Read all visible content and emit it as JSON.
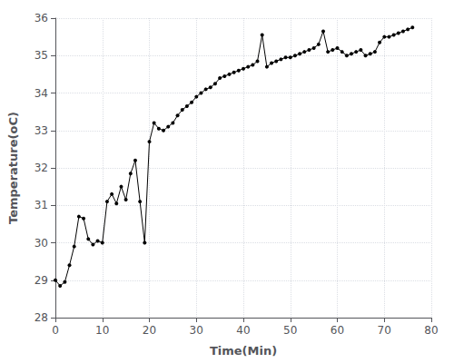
{
  "chart_data": {
    "type": "line",
    "xlabel": "Time(Min)",
    "ylabel": "Temperature(oC)",
    "x": [
      0,
      1,
      2,
      3,
      4,
      5,
      6,
      7,
      8,
      9,
      10,
      11,
      12,
      13,
      14,
      15,
      16,
      17,
      18,
      19,
      20,
      21,
      22,
      23,
      24,
      25,
      26,
      27,
      28,
      29,
      30,
      31,
      32,
      33,
      34,
      35,
      36,
      37,
      38,
      39,
      40,
      41,
      42,
      43,
      44,
      45,
      46,
      47,
      48,
      49,
      50,
      51,
      52,
      53,
      54,
      55,
      56,
      57,
      58,
      59,
      60,
      61,
      62,
      63,
      64,
      65,
      66,
      67,
      68,
      69,
      70,
      71,
      72,
      73,
      74,
      75,
      76
    ],
    "values": [
      29.0,
      28.85,
      28.95,
      29.4,
      29.9,
      30.7,
      30.65,
      30.1,
      29.95,
      30.05,
      30.0,
      31.1,
      31.3,
      31.05,
      31.5,
      31.15,
      31.85,
      32.2,
      31.1,
      30.0,
      32.7,
      33.2,
      33.05,
      33.0,
      33.1,
      33.2,
      33.4,
      33.55,
      33.65,
      33.75,
      33.9,
      34.0,
      34.1,
      34.15,
      34.25,
      34.4,
      34.45,
      34.5,
      34.55,
      34.6,
      34.65,
      34.7,
      34.75,
      34.85,
      35.55,
      34.7,
      34.8,
      34.85,
      34.9,
      34.95,
      34.95,
      35.0,
      35.05,
      35.1,
      35.15,
      35.2,
      35.3,
      35.65,
      35.1,
      35.15,
      35.2,
      35.1,
      35.0,
      35.05,
      35.1,
      35.15,
      35.0,
      35.05,
      35.1,
      35.35,
      35.5,
      35.5,
      35.55,
      35.6,
      35.65,
      35.7,
      35.75
    ],
    "color": "#000000",
    "marker": "point",
    "xlim": [
      0,
      80
    ],
    "ylim": [
      28,
      36
    ],
    "xticks": [
      0,
      10,
      20,
      30,
      40,
      50,
      60,
      70,
      80
    ],
    "yticks": [
      28,
      29,
      30,
      31,
      32,
      33,
      34,
      35,
      36
    ],
    "grid": true
  }
}
